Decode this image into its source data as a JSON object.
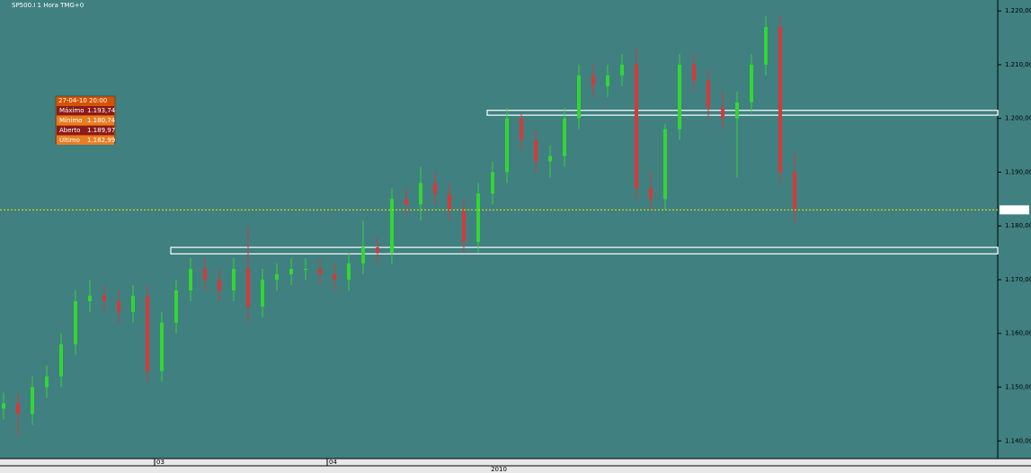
{
  "chart_data": {
    "type": "candlestick",
    "title": "SP500.I 1 Hora TMG+0",
    "categories": [
      null,
      null,
      null,
      null,
      null,
      null,
      null,
      null,
      null,
      null,
      null,
      "03",
      null,
      null,
      null,
      null,
      null,
      null,
      null,
      null,
      null,
      null,
      null,
      "04",
      null,
      null,
      null,
      null,
      null,
      null,
      null,
      null,
      null,
      null,
      null,
      null,
      null,
      null,
      null,
      null,
      null,
      null,
      null,
      null,
      null,
      null,
      null,
      null,
      null,
      null,
      null,
      null,
      null,
      null,
      null,
      null
    ],
    "x_label": "2010",
    "open": [
      1146,
      1147,
      1145,
      1150,
      1152,
      1158,
      1166,
      1167,
      1166,
      1164,
      1167,
      1153,
      1162,
      1168,
      1172,
      1170,
      1168,
      1172,
      1165,
      1170,
      1171,
      1172,
      1172,
      1171,
      1170,
      1173,
      1176,
      1175,
      1185,
      1184,
      1188,
      1186,
      1183,
      1177,
      1186,
      1190,
      1200,
      1196,
      1192,
      1193,
      1200,
      1208,
      1206,
      1208,
      1210,
      1187,
      1185,
      1198,
      1210,
      1207,
      1202,
      1200,
      1203,
      1210,
      1217,
      1189.97
    ],
    "high": [
      1149,
      1149,
      1152,
      1154,
      1160,
      1168,
      1170,
      1169,
      1168,
      1169,
      1169,
      1164,
      1170,
      1174,
      1174,
      1172,
      1174,
      1180,
      1172,
      1173,
      1174,
      1174,
      1174,
      1173,
      1175,
      1181,
      1178,
      1187,
      1187,
      1191,
      1190,
      1188,
      1185,
      1188,
      1192,
      1202,
      1201,
      1198,
      1195,
      1202,
      1210,
      1210,
      1210,
      1212,
      1213,
      1190,
      1199,
      1212,
      1212,
      1209,
      1205,
      1205,
      1212,
      1219,
      1219,
      1193.74
    ],
    "low": [
      1144,
      1141,
      1143,
      1148,
      1150,
      1156,
      1164,
      1164,
      1162,
      1162,
      1151,
      1151,
      1160,
      1166,
      1168,
      1166,
      1166,
      1162,
      1163,
      1168,
      1169,
      1170,
      1169,
      1168,
      1168,
      1171,
      1173,
      1173,
      1182,
      1181,
      1184,
      1181,
      1175,
      1175,
      1184,
      1188,
      1194,
      1190,
      1189,
      1191,
      1198,
      1204,
      1204,
      1206,
      1185,
      1183,
      1183,
      1196,
      1205,
      1200,
      1198,
      1189,
      1201,
      1208,
      1188,
      1180.74
    ],
    "close": [
      1147,
      1145,
      1150,
      1152,
      1158,
      1166,
      1167,
      1166,
      1164,
      1167,
      1153,
      1162,
      1168,
      1172,
      1170,
      1168,
      1172,
      1165,
      1170,
      1171,
      1172,
      1172,
      1171,
      1170,
      1173,
      1176,
      1175,
      1185,
      1184,
      1188,
      1186,
      1183,
      1177,
      1186,
      1190,
      1200,
      1196,
      1192,
      1193,
      1200,
      1208,
      1206,
      1208,
      1210,
      1187,
      1185,
      1198,
      1210,
      1207,
      1202,
      1200,
      1203,
      1210,
      1217,
      1189.97,
      1182.99
    ],
    "up_color": "#33d633",
    "down_color": "#d43a3a",
    "zones": [
      {
        "x": 34,
        "ylim": [
          1200.6,
          1201.5
        ]
      },
      {
        "x": 12,
        "ylim": [
          1174.8,
          1176
        ]
      }
    ],
    "ylim": [
      1136.7,
      1221.7
    ],
    "yticks": [
      {
        "value": 1140,
        "label": "1.140,00"
      },
      {
        "value": 1150,
        "label": "1.150,00"
      },
      {
        "value": 1160,
        "label": "1.160,00"
      },
      {
        "value": 1170,
        "label": "1.170,00"
      },
      {
        "value": 1180,
        "label": "1.180,00"
      },
      {
        "value": 1190,
        "label": "1.190,00"
      },
      {
        "value": 1200,
        "label": "1.200,00"
      },
      {
        "value": 1210,
        "label": "1.210,00"
      },
      {
        "value": 1220,
        "label": "1.220,00"
      }
    ]
  },
  "data_window": {
    "header": "27-04-10  20:00",
    "rows": [
      {
        "label": "Máximo",
        "value": "1.193,74"
      },
      {
        "label": "Mínimo",
        "value": "1.180,74"
      },
      {
        "label": "Aberto",
        "value": "1.189,97"
      },
      {
        "label": "Último",
        "value": "1.182,99"
      }
    ]
  }
}
